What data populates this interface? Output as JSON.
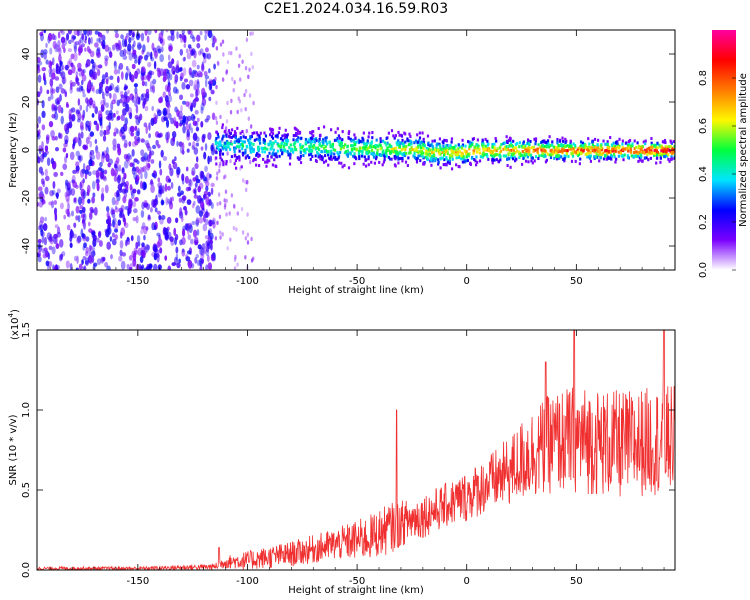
{
  "title": "C2E1.2024.034.16.59.R03",
  "chart_data": [
    {
      "type": "heatmap",
      "title": "",
      "xlabel": "Height of straight line (km)",
      "ylabel": "Frequency (Hz)",
      "xlim": [
        -196,
        95
      ],
      "ylim": [
        -50,
        50
      ],
      "xticks": [
        -150,
        -100,
        -50,
        0,
        50
      ],
      "yticks": [
        -40,
        -20,
        0,
        20,
        40
      ],
      "colorbar": {
        "label": "Normalized spectral amplitude",
        "range": [
          0.0,
          1.0
        ],
        "ticks": [
          "0.0",
          "0.2",
          "0.4",
          "0.6",
          "0.8"
        ],
        "colors": [
          "#ffffff",
          "#7a00ff",
          "#0000ff",
          "#00e5ff",
          "#00ff3c",
          "#fff700",
          "#ff7a00",
          "#ff0000",
          "#ff00a0"
        ]
      },
      "features": [
        {
          "region": "x from -196 to -115 km",
          "description": "broadband purple noise across all frequencies",
          "amplitude": 0.1
        },
        {
          "region": "x from -115 to 95 km",
          "description": "narrow band centered near 0 Hz",
          "amplitude_start": 0.4,
          "amplitude_end": 0.95
        }
      ]
    },
    {
      "type": "line",
      "title": "",
      "xlabel": "Height of straight line (km)",
      "ylabel": "SNR (10 * v/v)",
      "y_multiplier": "(x10^4)",
      "multiplier_base": "(x10",
      "multiplier_exp": "4",
      "multiplier_close": ")",
      "xlim": [
        -196,
        95
      ],
      "ylim": [
        0.0,
        1.5
      ],
      "xticks": [
        -150,
        -100,
        -50,
        0,
        50
      ],
      "yticks": [
        "0.0",
        "0.5",
        "1.0",
        "1.5"
      ],
      "series": [
        {
          "color": "#f03030",
          "envelope_x": [
            -196,
            -150,
            -115,
            -110,
            -100,
            -80,
            -60,
            -45,
            -35,
            -28,
            -20,
            -10,
            0,
            10,
            20,
            28,
            40,
            50,
            60,
            70,
            80,
            95
          ],
          "envelope_mean": [
            0.01,
            0.01,
            0.02,
            0.05,
            0.06,
            0.1,
            0.16,
            0.2,
            0.26,
            0.3,
            0.34,
            0.4,
            0.46,
            0.54,
            0.62,
            0.72,
            0.8,
            0.82,
            0.8,
            0.78,
            0.8,
            0.82
          ],
          "envelope_spread": [
            0.01,
            0.01,
            0.02,
            0.04,
            0.06,
            0.08,
            0.1,
            0.14,
            0.16,
            0.14,
            0.14,
            0.14,
            0.16,
            0.18,
            0.22,
            0.28,
            0.32,
            0.34,
            0.34,
            0.34,
            0.34,
            0.34
          ],
          "peaks": [
            {
              "x": -113,
              "y": 0.14
            },
            {
              "x": -32,
              "y": 1.0
            },
            {
              "x": 36,
              "y": 1.3
            },
            {
              "x": 49,
              "y": 1.5
            },
            {
              "x": 90,
              "y": 1.5
            }
          ]
        }
      ]
    }
  ]
}
